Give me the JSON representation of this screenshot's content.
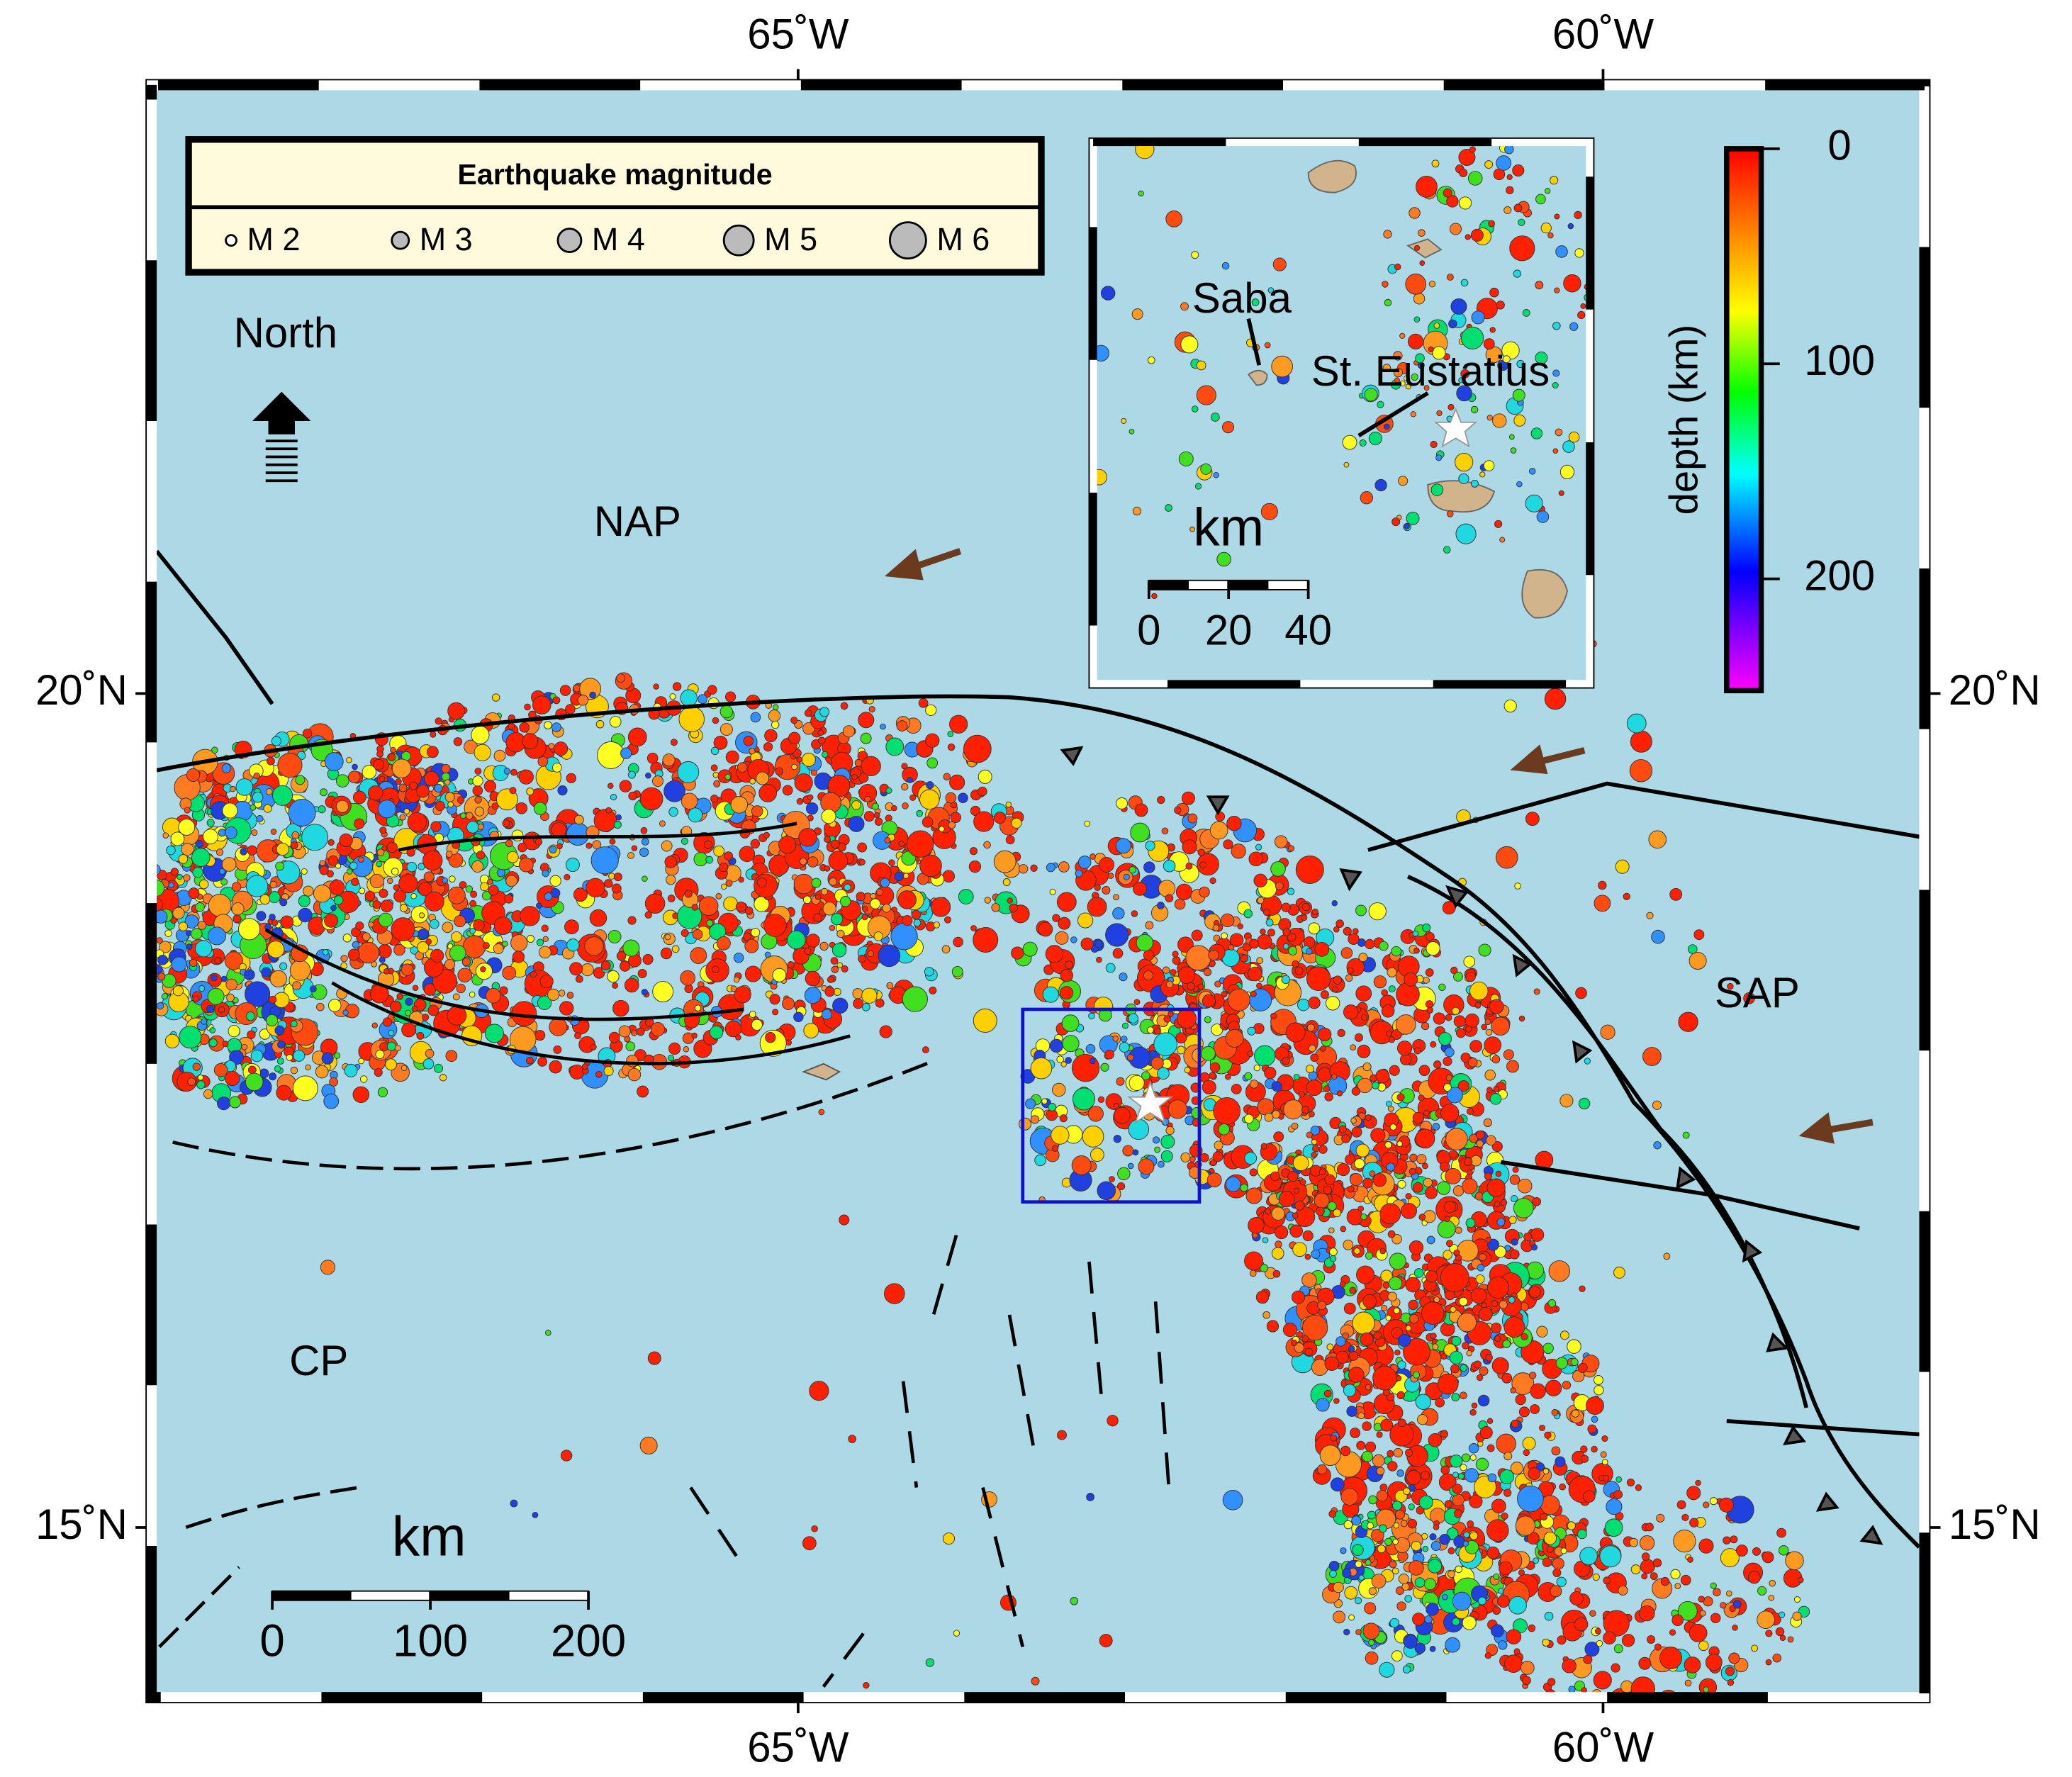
{
  "map": {
    "xlim": [
      -69.05,
      -57.97
    ],
    "ylim": [
      13.95,
      23.68
    ],
    "xticks": [
      {
        "value": -65,
        "label": "65˚W"
      },
      {
        "value": -60,
        "label": "60˚W"
      }
    ],
    "yticks": [
      {
        "value": 20,
        "label": "20˚N"
      },
      {
        "value": 15,
        "label": "15˚N"
      }
    ],
    "legend": {
      "title": "Earthquake magnitude",
      "items": [
        "M 2",
        "M 3",
        "M 4",
        "M 5",
        "M 6"
      ]
    },
    "north": "North",
    "plates": [
      "NAP",
      "SAP",
      "CP"
    ],
    "scalebar": {
      "unit": "km",
      "ticks": [
        0,
        100,
        200
      ]
    },
    "inset": {
      "labels": [
        "Saba",
        "St. Eustatius"
      ],
      "scalebar": {
        "unit": "km",
        "ticks": [
          0,
          20,
          40
        ]
      }
    },
    "colorbar": {
      "label": "depth (km)",
      "ylim": [
        0,
        252
      ],
      "yticks": [
        0,
        100,
        200
      ]
    }
  }
}
